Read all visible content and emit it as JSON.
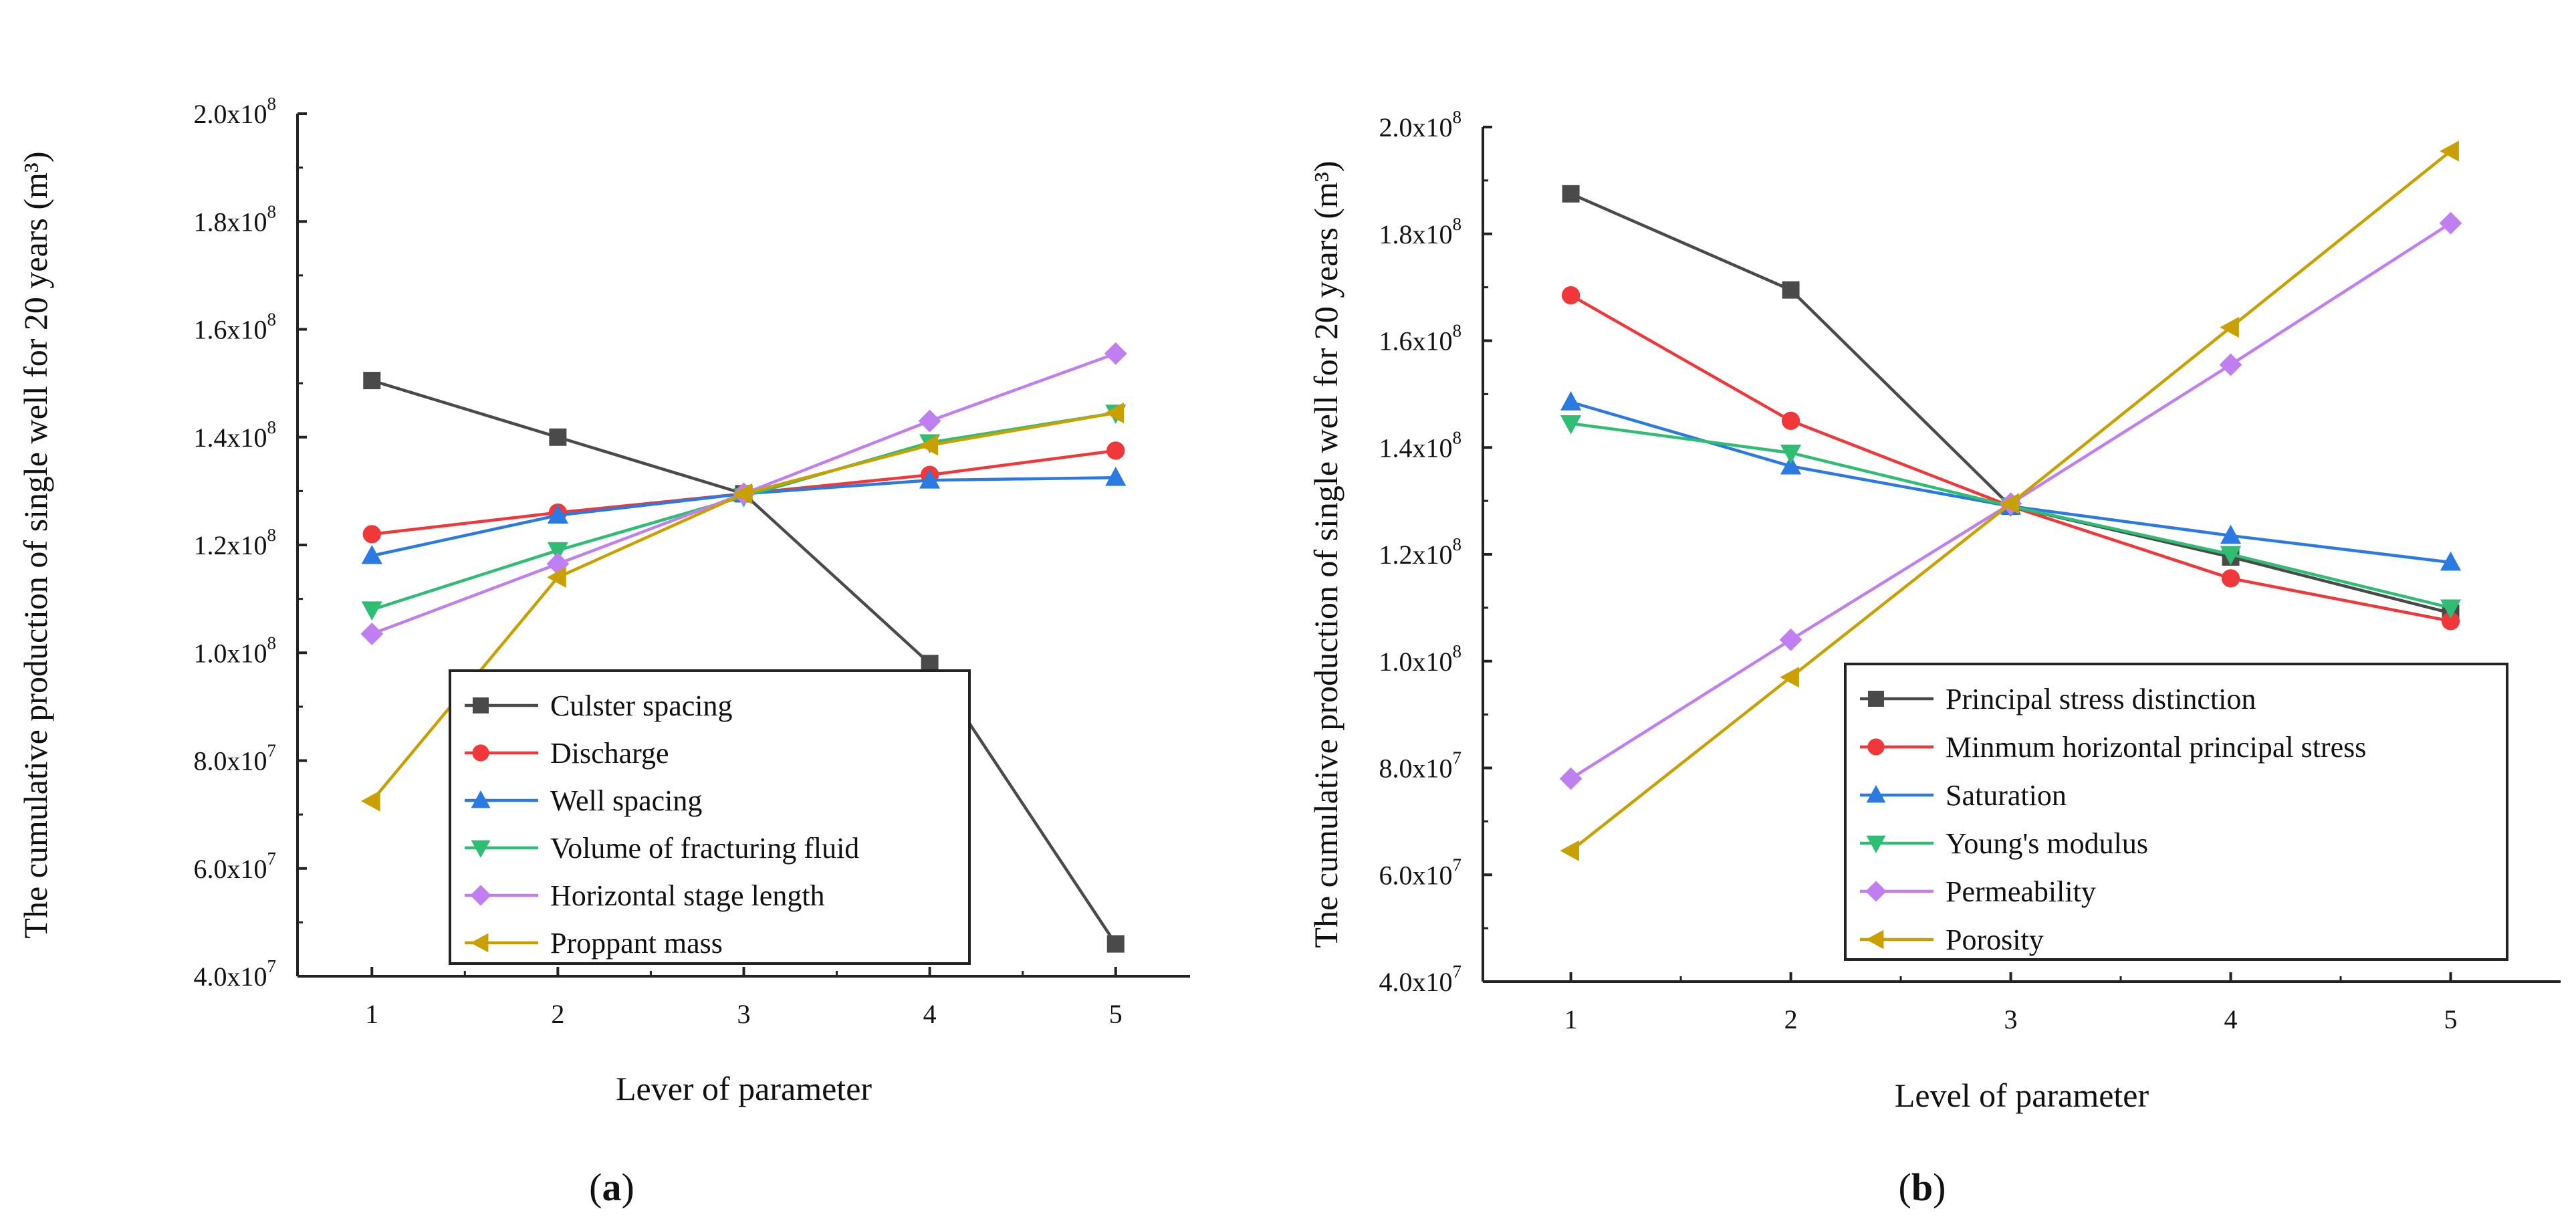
{
  "chart_data": [
    {
      "type": "line",
      "panel_label": "(a)",
      "xlabel": "Lever of parameter",
      "ylabel": "The cumulative production of single well for 20 years (m³)",
      "x": [
        1,
        2,
        3,
        4,
        5
      ],
      "xlim": [
        0.6,
        5.4
      ],
      "ylim": [
        40000000,
        200000000
      ],
      "yticks": [
        40000000,
        60000000,
        80000000,
        100000000,
        120000000,
        140000000,
        160000000,
        180000000,
        200000000
      ],
      "ytick_labels": [
        {
          "mant": "4.0x10",
          "exp": "7"
        },
        {
          "mant": "6.0x10",
          "exp": "7"
        },
        {
          "mant": "8.0x10",
          "exp": "7"
        },
        {
          "mant": "1.0x10",
          "exp": "8"
        },
        {
          "mant": "1.2x10",
          "exp": "8"
        },
        {
          "mant": "1.4x10",
          "exp": "8"
        },
        {
          "mant": "1.6x10",
          "exp": "8"
        },
        {
          "mant": "1.8x10",
          "exp": "8"
        },
        {
          "mant": "2.0x10",
          "exp": "8"
        }
      ],
      "legend_position": "bottom-center",
      "series": [
        {
          "name": "Culster spacing",
          "color": "#4a4a4a",
          "marker": "square",
          "values": [
            150500000,
            140000000,
            129500000,
            98000000,
            46000000
          ]
        },
        {
          "name": "Discharge",
          "color": "#f0383a",
          "marker": "circle",
          "values": [
            122000000,
            126000000,
            129500000,
            133000000,
            137500000
          ]
        },
        {
          "name": "Well spacing",
          "color": "#2a7ae2",
          "marker": "triangle-up",
          "values": [
            118000000,
            125500000,
            129500000,
            132000000,
            132500000
          ]
        },
        {
          "name": "Volume of fracturing fluid",
          "color": "#2ebd72",
          "marker": "triangle-down",
          "values": [
            108000000,
            119000000,
            129000000,
            139000000,
            144500000
          ]
        },
        {
          "name": "Horizontal stage length",
          "color": "#c07ff0",
          "marker": "diamond",
          "values": [
            103500000,
            116500000,
            129500000,
            143000000,
            155500000
          ]
        },
        {
          "name": "Proppant mass",
          "color": "#c9a000",
          "marker": "triangle-left",
          "values": [
            72500000,
            114000000,
            129500000,
            138500000,
            144500000
          ]
        }
      ]
    },
    {
      "type": "line",
      "panel_label": "(b)",
      "xlabel": "Level of parameter",
      "ylabel": "The cumulative production of single well for 20 years (m³)",
      "x": [
        1,
        2,
        3,
        4,
        5
      ],
      "xlim": [
        0.6,
        5.5
      ],
      "ylim": [
        40000000,
        200000000
      ],
      "yticks": [
        40000000,
        60000000,
        80000000,
        100000000,
        120000000,
        140000000,
        160000000,
        180000000,
        200000000
      ],
      "ytick_labels": [
        {
          "mant": "4.0x10",
          "exp": "7"
        },
        {
          "mant": "6.0x10",
          "exp": "7"
        },
        {
          "mant": "8.0x10",
          "exp": "7"
        },
        {
          "mant": "1.0x10",
          "exp": "8"
        },
        {
          "mant": "1.2x10",
          "exp": "8"
        },
        {
          "mant": "1.4x10",
          "exp": "8"
        },
        {
          "mant": "1.6x10",
          "exp": "8"
        },
        {
          "mant": "1.8x10",
          "exp": "8"
        },
        {
          "mant": "2.0x10",
          "exp": "8"
        }
      ],
      "legend_position": "bottom-left",
      "series": [
        {
          "name": "Principal stress distinction",
          "color": "#4a4a4a",
          "marker": "square",
          "values": [
            187500000,
            169500000,
            129000000,
            119500000,
            109000000
          ]
        },
        {
          "name": "Minmum horizontal principal stress",
          "color": "#f0383a",
          "marker": "circle",
          "values": [
            168500000,
            145000000,
            129000000,
            115500000,
            107500000
          ]
        },
        {
          "name": "Saturation",
          "color": "#2a7ae2",
          "marker": "triangle-up",
          "values": [
            148500000,
            136500000,
            129000000,
            123500000,
            118500000
          ]
        },
        {
          "name": "Young's modulus",
          "color": "#2ebd72",
          "marker": "triangle-down",
          "values": [
            144500000,
            139000000,
            129000000,
            120000000,
            110000000
          ]
        },
        {
          "name": "Permeability",
          "color": "#c07ff0",
          "marker": "diamond",
          "values": [
            78000000,
            104000000,
            129500000,
            155500000,
            182000000
          ]
        },
        {
          "name": "Porosity",
          "color": "#c9a000",
          "marker": "triangle-left",
          "values": [
            64500000,
            97000000,
            129500000,
            162500000,
            195500000
          ]
        }
      ]
    }
  ]
}
